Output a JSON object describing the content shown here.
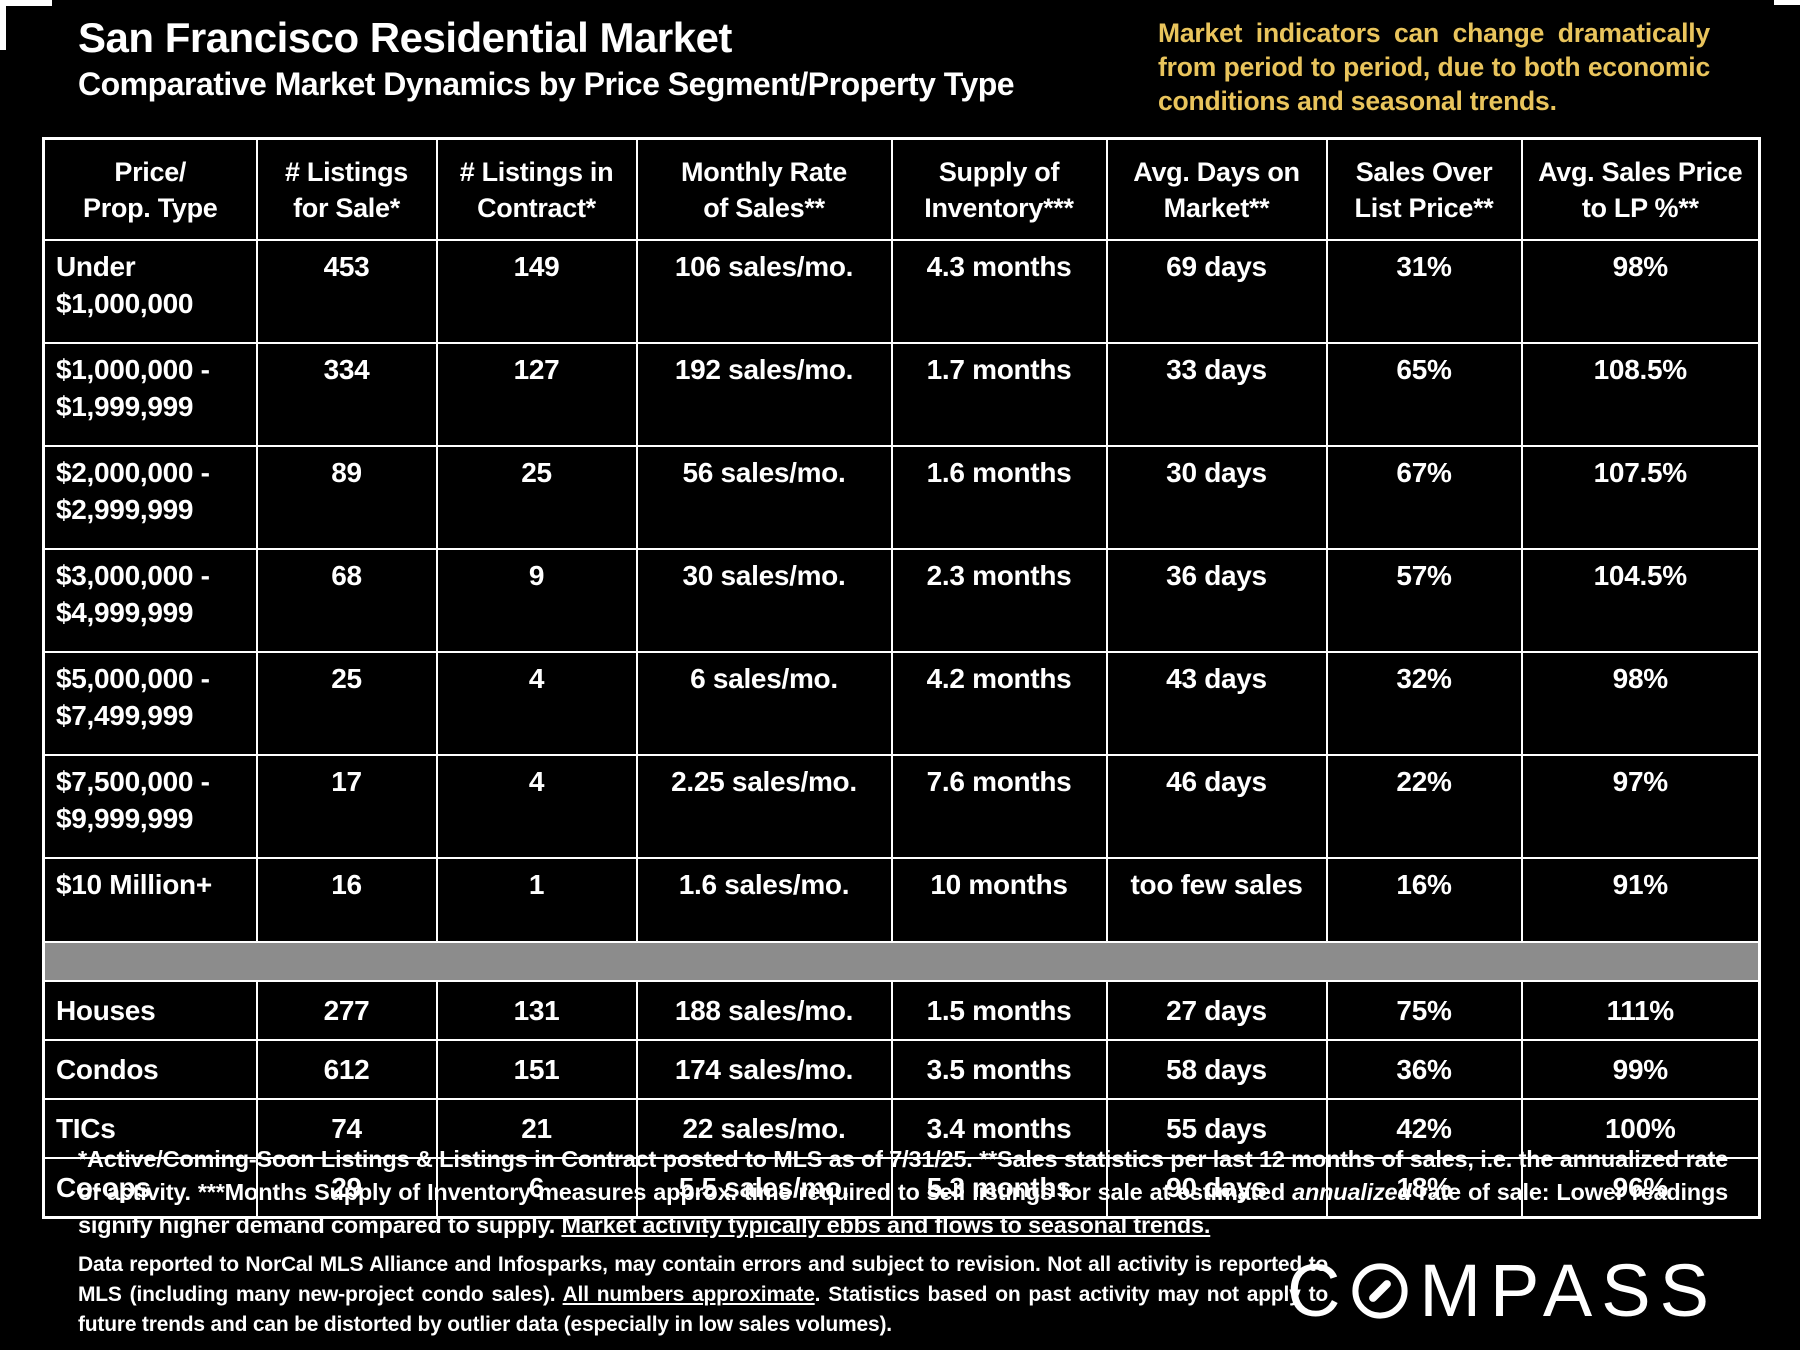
{
  "page": {
    "title": "San Francisco Residential Market",
    "subtitle": "Comparative Market Dynamics by Price Segment/Property Type",
    "notice": "Market indicators can change dramatically from period to period, due to both economic conditions and seasonal trends."
  },
  "colors": {
    "background": "#000000",
    "text": "#ffffff",
    "notice_yellow": "#e9c45c",
    "divider_gray": "#8c8c8c",
    "border": "#ffffff"
  },
  "table": {
    "columns": [
      "Price/\nProp. Type",
      "# Listings\nfor Sale*",
      "# Listings in\nContract*",
      "Monthly Rate\nof Sales**",
      "Supply of\nInventory***",
      "Avg. Days on\nMarket**",
      "Sales Over\nList Price**",
      "Avg. Sales Price\nto LP %**"
    ],
    "price_rows": [
      {
        "label": "Under\n$1,000,000",
        "values": [
          "453",
          "149",
          "106 sales/mo.",
          "4.3 months",
          "69 days",
          "31%",
          "98%"
        ]
      },
      {
        "label": "$1,000,000 -\n$1,999,999",
        "values": [
          "334",
          "127",
          "192 sales/mo.",
          "1.7 months",
          "33 days",
          "65%",
          "108.5%"
        ]
      },
      {
        "label": "$2,000,000 -\n$2,999,999",
        "values": [
          "89",
          "25",
          "56 sales/mo.",
          "1.6 months",
          "30 days",
          "67%",
          "107.5%"
        ]
      },
      {
        "label": "$3,000,000 -\n$4,999,999",
        "values": [
          "68",
          "9",
          "30 sales/mo.",
          "2.3 months",
          "36 days",
          "57%",
          "104.5%"
        ]
      },
      {
        "label": "$5,000,000 -\n$7,499,999",
        "values": [
          "25",
          "4",
          "6 sales/mo.",
          "4.2 months",
          "43 days",
          "32%",
          "98%"
        ]
      },
      {
        "label": "$7,500,000 -\n$9,999,999",
        "values": [
          "17",
          "4",
          "2.25 sales/mo.",
          "7.6 months",
          "46 days",
          "22%",
          "97%"
        ]
      },
      {
        "label": "$10 Million+",
        "values": [
          "16",
          "1",
          "1.6 sales/mo.",
          "10 months",
          "too few sales",
          "16%",
          "91%"
        ]
      }
    ],
    "type_rows": [
      {
        "label": "Houses",
        "values": [
          "277",
          "131",
          "188 sales/mo.",
          "1.5 months",
          "27 days",
          "75%",
          "111%"
        ]
      },
      {
        "label": "Condos",
        "values": [
          "612",
          "151",
          "174 sales/mo.",
          "3.5 months",
          "58 days",
          "36%",
          "99%"
        ]
      },
      {
        "label": "TICs",
        "values": [
          "74",
          "21",
          "22 sales/mo.",
          "3.4 months",
          "55 days",
          "42%",
          "100%"
        ]
      },
      {
        "label": "Co-ops",
        "values": [
          "29",
          "6",
          "5.5 sales/mo.",
          "5.3 months",
          "90 days",
          "18%",
          "96%"
        ]
      }
    ]
  },
  "footnotes": {
    "fn1": {
      "part1": "*Active/Coming-Soon Listings & Listings in Contract posted to MLS as of 7/31/25. **Sales statistics per last 12 months of sales, i.e. the annualized rate of activity.  ***Months Supply of Inventory measures approx. time required to sell listings for sale at estimated ",
      "italic": "annualized",
      "part2": " rate of sale:  Lower readings signify higher demand compared to supply. ",
      "underline": "Market activity typically ebbs and flows to seasonal trends."
    },
    "fn2": {
      "part1": "Data reported to NorCal MLS Alliance and Infosparks, may contain errors and subject to revision.  Not all activity is reported to MLS (including many new-project condo sales). ",
      "underline": "All numbers approximate",
      "part2": ". Statistics based on past activity may not apply to future trends and can be distorted by outlier data (especially in low sales volumes)."
    }
  },
  "logo": {
    "prefix": "C",
    "suffix": "MPASS"
  }
}
